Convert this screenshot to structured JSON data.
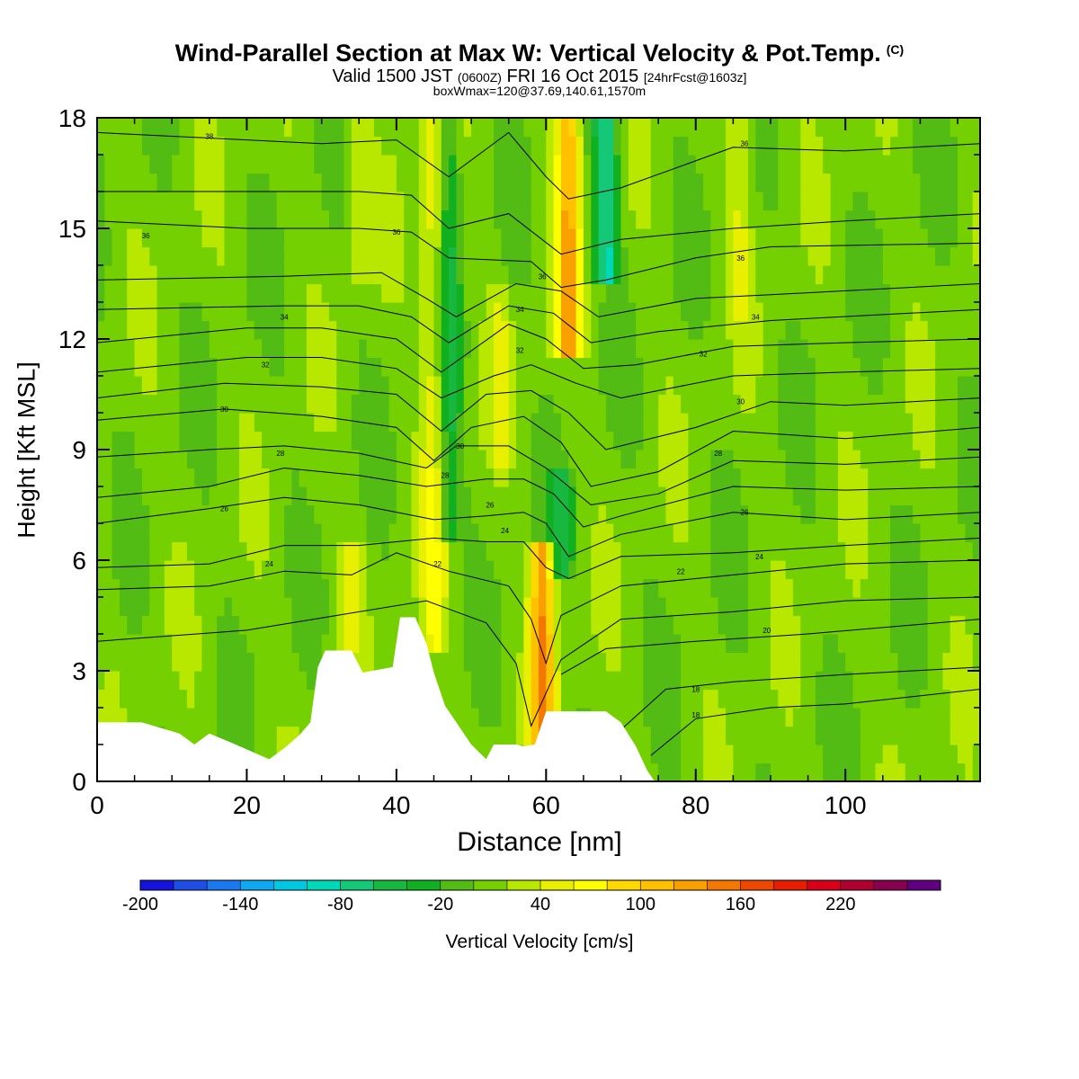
{
  "title": "Wind-Parallel Section at Max W: Vertical Velocity & Pot.Temp.",
  "copyright": "(C)",
  "subtitle_main_a": "Valid 1500 JST",
  "subtitle_small_a": "(0600Z)",
  "subtitle_main_b": "FRI 16 Oct 2015",
  "subtitle_small_b": "[24hrFcst@1603z]",
  "subtitle2": "boxWmax=120@37.69,140.61,1570m",
  "chart_data": {
    "type": "heatmap",
    "xlabel": "Distance [nm]",
    "ylabel": "Height [Kft MSL]",
    "xlim": [
      0,
      118
    ],
    "ylim": [
      0,
      18
    ],
    "xticks": [
      0,
      20,
      40,
      60,
      80,
      100
    ],
    "yticks": [
      0,
      3,
      6,
      9,
      12,
      15,
      18
    ],
    "colorbar": {
      "label": "Vertical Velocity [cm/s]",
      "min": -200,
      "step": 20,
      "ticks": [
        -200,
        -140,
        -80,
        -20,
        40,
        100,
        160,
        220
      ],
      "colors": [
        "#1414dc",
        "#1f4ee6",
        "#1a78f0",
        "#10a8f0",
        "#00c8e0",
        "#00d8b8",
        "#14c878",
        "#18b840",
        "#10b020",
        "#52bc14",
        "#74d000",
        "#b8e800",
        "#e8f000",
        "#ffff00",
        "#ffd800",
        "#ffc000",
        "#f8a000",
        "#f47800",
        "#ee4800",
        "#e81c00",
        "#d80018",
        "#b00030",
        "#880050",
        "#600080"
      ]
    },
    "vertical_velocity_features_cm_s": [
      {
        "x": 45,
        "z_range": [
          4.2,
          18
        ],
        "w": 60
      },
      {
        "x": 47,
        "z_range": [
          7,
          18
        ],
        "w": -40
      },
      {
        "x": 54,
        "z_range": [
          9,
          13
        ],
        "w": 40
      },
      {
        "x": 59.5,
        "z_range": [
          1,
          6
        ],
        "w": 140
      },
      {
        "x": 63,
        "z_range": [
          12,
          18
        ],
        "w": 120
      },
      {
        "x": 68,
        "z_range": [
          14,
          18
        ],
        "w": -80
      },
      {
        "x": 86,
        "z_range": [
          13,
          18
        ],
        "w": 40
      },
      {
        "x": 34,
        "z_range": [
          4,
          6
        ],
        "w": 40
      },
      {
        "x": 35,
        "z_range": [
          14,
          18
        ],
        "w": 40
      },
      {
        "x": 62,
        "z_range": [
          6,
          8
        ],
        "w": -40
      }
    ],
    "terrain_kft": [
      [
        0,
        1.6
      ],
      [
        6,
        1.6
      ],
      [
        11,
        1.3
      ],
      [
        13,
        1.0
      ],
      [
        15,
        1.3
      ],
      [
        18.5,
        1.0
      ],
      [
        23,
        0.6
      ],
      [
        25,
        0.9
      ],
      [
        27,
        1.25
      ],
      [
        28.5,
        1.6
      ],
      [
        29.5,
        3.1
      ],
      [
        30.5,
        3.55
      ],
      [
        34,
        3.55
      ],
      [
        35.5,
        2.95
      ],
      [
        39.5,
        3.1
      ],
      [
        40.5,
        4.45
      ],
      [
        42.5,
        4.45
      ],
      [
        44,
        3.75
      ],
      [
        45,
        2.95
      ],
      [
        46.5,
        2.05
      ],
      [
        48,
        1.6
      ],
      [
        49,
        1.3
      ],
      [
        50,
        1.0
      ],
      [
        52,
        0.6
      ],
      [
        53,
        1.0
      ],
      [
        56,
        1.0
      ],
      [
        57,
        0.95
      ],
      [
        58.5,
        1.0
      ],
      [
        60,
        1.9
      ],
      [
        68,
        1.9
      ],
      [
        70,
        1.6
      ],
      [
        72,
        0.95
      ],
      [
        73.5,
        0.3
      ],
      [
        74.5,
        0
      ],
      [
        118,
        0
      ]
    ],
    "isentropes": [
      {
        "label": "18",
        "pts": [
          [
            74,
            0.7
          ],
          [
            80,
            1.7
          ],
          [
            90,
            2.0
          ],
          [
            100,
            2.1
          ],
          [
            118,
            2.5
          ]
        ]
      },
      {
        "label": "18",
        "pts": [
          [
            70,
            1.4
          ],
          [
            76,
            2.5
          ],
          [
            85,
            2.7
          ],
          [
            100,
            2.9
          ],
          [
            118,
            3.1
          ]
        ]
      },
      {
        "label": "20",
        "pts": [
          [
            62,
            2.9
          ],
          [
            68,
            3.6
          ],
          [
            80,
            3.8
          ],
          [
            95,
            4.0
          ],
          [
            118,
            4.4
          ]
        ]
      },
      {
        "label": "22",
        "pts": [
          [
            0,
            3.8
          ],
          [
            20,
            4.1
          ],
          [
            32,
            4.5
          ],
          [
            44,
            4.9
          ],
          [
            52,
            4.3
          ],
          [
            56,
            3.2
          ],
          [
            58,
            1.5
          ],
          [
            62,
            3.3
          ],
          [
            70,
            4.4
          ],
          [
            85,
            4.6
          ],
          [
            100,
            4.9
          ],
          [
            118,
            5.0
          ]
        ]
      },
      {
        "label": "24",
        "pts": [
          [
            0,
            5.2
          ],
          [
            15,
            5.3
          ],
          [
            25,
            5.7
          ],
          [
            34,
            5.6
          ],
          [
            40,
            6.2
          ],
          [
            47,
            5.7
          ],
          [
            55,
            5.3
          ],
          [
            58,
            4.4
          ],
          [
            60,
            3.2
          ],
          [
            62,
            4.5
          ],
          [
            70,
            5.3
          ],
          [
            85,
            5.6
          ],
          [
            100,
            5.9
          ],
          [
            118,
            6.0
          ]
        ]
      },
      {
        "label": "24",
        "pts": [
          [
            0,
            5.8
          ],
          [
            15,
            5.9
          ],
          [
            25,
            6.4
          ],
          [
            35,
            6.4
          ],
          [
            45,
            6.6
          ],
          [
            52,
            6.5
          ],
          [
            57,
            6.5
          ],
          [
            60,
            5.8
          ],
          [
            63,
            5.5
          ],
          [
            70,
            6.1
          ],
          [
            85,
            6.2
          ],
          [
            100,
            6.4
          ],
          [
            118,
            6.6
          ]
        ]
      },
      {
        "label": "26",
        "pts": [
          [
            0,
            7.0
          ],
          [
            15,
            7.4
          ],
          [
            25,
            7.7
          ],
          [
            35,
            7.5
          ],
          [
            45,
            7.1
          ],
          [
            52,
            7.2
          ],
          [
            57,
            7.3
          ],
          [
            60,
            7.0
          ],
          [
            63,
            6.1
          ],
          [
            70,
            6.7
          ],
          [
            85,
            7.3
          ],
          [
            100,
            7.1
          ],
          [
            118,
            7.3
          ]
        ]
      },
      {
        "label": "26",
        "pts": [
          [
            0,
            7.7
          ],
          [
            15,
            8.0
          ],
          [
            25,
            8.5
          ],
          [
            35,
            8.3
          ],
          [
            44,
            8.0
          ],
          [
            52,
            8.2
          ],
          [
            57,
            8.2
          ],
          [
            61,
            7.8
          ],
          [
            65,
            6.9
          ],
          [
            70,
            7.2
          ],
          [
            85,
            8.0
          ],
          [
            100,
            7.9
          ],
          [
            118,
            8.0
          ]
        ]
      },
      {
        "label": "28",
        "pts": [
          [
            0,
            8.8
          ],
          [
            15,
            9.0
          ],
          [
            25,
            9.1
          ],
          [
            35,
            8.9
          ],
          [
            44,
            8.5
          ],
          [
            48,
            9.1
          ],
          [
            55,
            9.1
          ],
          [
            60,
            8.5
          ],
          [
            66,
            7.5
          ],
          [
            75,
            7.8
          ],
          [
            85,
            8.7
          ],
          [
            100,
            8.6
          ],
          [
            118,
            8.8
          ]
        ]
      },
      {
        "label": "30",
        "pts": [
          [
            0,
            9.8
          ],
          [
            17,
            10.1
          ],
          [
            30,
            9.9
          ],
          [
            40,
            9.6
          ],
          [
            45,
            8.7
          ],
          [
            50,
            9.6
          ],
          [
            57,
            9.9
          ],
          [
            62,
            9.2
          ],
          [
            66,
            8.0
          ],
          [
            75,
            8.4
          ],
          [
            85,
            9.5
          ],
          [
            100,
            9.3
          ],
          [
            118,
            9.6
          ]
        ]
      },
      {
        "label": "30",
        "pts": [
          [
            0,
            10.4
          ],
          [
            17,
            10.8
          ],
          [
            30,
            10.7
          ],
          [
            40,
            10.5
          ],
          [
            46,
            9.5
          ],
          [
            52,
            10.5
          ],
          [
            58,
            10.6
          ],
          [
            63,
            10.0
          ],
          [
            68,
            9.0
          ],
          [
            80,
            9.6
          ],
          [
            90,
            10.3
          ],
          [
            100,
            10.2
          ],
          [
            118,
            10.4
          ]
        ]
      },
      {
        "label": "32",
        "pts": [
          [
            0,
            11.1
          ],
          [
            20,
            11.5
          ],
          [
            30,
            11.5
          ],
          [
            40,
            11.2
          ],
          [
            46,
            10.4
          ],
          [
            53,
            11.0
          ],
          [
            58,
            11.3
          ],
          [
            64,
            10.8
          ],
          [
            70,
            10.4
          ],
          [
            85,
            11.0
          ],
          [
            100,
            11.1
          ],
          [
            118,
            11.2
          ]
        ]
      },
      {
        "label": "32",
        "pts": [
          [
            0,
            11.9
          ],
          [
            20,
            12.3
          ],
          [
            30,
            12.3
          ],
          [
            40,
            12.0
          ],
          [
            46,
            11.1
          ],
          [
            55,
            12.4
          ],
          [
            60,
            12.0
          ],
          [
            65,
            11.2
          ],
          [
            72,
            11.3
          ],
          [
            85,
            11.8
          ],
          [
            100,
            11.9
          ],
          [
            118,
            12.0
          ]
        ]
      },
      {
        "label": "34",
        "pts": [
          [
            0,
            12.8
          ],
          [
            25,
            12.9
          ],
          [
            35,
            12.9
          ],
          [
            42,
            12.6
          ],
          [
            47,
            11.9
          ],
          [
            55,
            12.9
          ],
          [
            61,
            12.7
          ],
          [
            66,
            11.9
          ],
          [
            75,
            12.2
          ],
          [
            90,
            12.5
          ],
          [
            118,
            12.8
          ]
        ]
      },
      {
        "label": "34",
        "pts": [
          [
            0,
            13.6
          ],
          [
            25,
            13.7
          ],
          [
            38,
            13.8
          ],
          [
            44,
            13.1
          ],
          [
            48,
            12.6
          ],
          [
            56,
            13.5
          ],
          [
            62,
            13.3
          ],
          [
            67,
            12.6
          ],
          [
            80,
            13.1
          ],
          [
            90,
            13.2
          ],
          [
            118,
            13.5
          ]
        ]
      },
      {
        "label": "36",
        "pts": [
          [
            0,
            15.2
          ],
          [
            20,
            15.0
          ],
          [
            35,
            15.0
          ],
          [
            42,
            14.9
          ],
          [
            47,
            14.2
          ],
          [
            58,
            14.1
          ],
          [
            62,
            13.4
          ],
          [
            68,
            13.6
          ],
          [
            80,
            14.2
          ],
          [
            90,
            14.5
          ],
          [
            118,
            14.6
          ]
        ]
      },
      {
        "label": "36",
        "pts": [
          [
            0,
            16.0
          ],
          [
            20,
            16.0
          ],
          [
            35,
            16.0
          ],
          [
            42,
            15.9
          ],
          [
            47,
            15.0
          ],
          [
            55,
            15.4
          ],
          [
            62,
            14.3
          ],
          [
            70,
            14.7
          ],
          [
            85,
            15.0
          ],
          [
            100,
            15.2
          ],
          [
            118,
            15.4
          ]
        ]
      },
      {
        "label": "38",
        "pts": [
          [
            0,
            17.6
          ],
          [
            20,
            17.4
          ],
          [
            30,
            17.3
          ],
          [
            40,
            17.4
          ],
          [
            47,
            16.4
          ],
          [
            55,
            17.6
          ],
          [
            60,
            16.4
          ],
          [
            63,
            15.8
          ],
          [
            70,
            16.1
          ],
          [
            85,
            17.2
          ],
          [
            100,
            17.1
          ],
          [
            118,
            17.3
          ]
        ]
      }
    ],
    "contour_labels_visible": [
      {
        "text": "38",
        "x": 15,
        "z": 17.5
      },
      {
        "text": "36",
        "x": 6.5,
        "z": 14.8
      },
      {
        "text": "36",
        "x": 40,
        "z": 14.9
      },
      {
        "text": "36",
        "x": 86,
        "z": 14.2
      },
      {
        "text": "36",
        "x": 86.5,
        "z": 17.3
      },
      {
        "text": "34",
        "x": 25,
        "z": 12.6
      },
      {
        "text": "34",
        "x": 88,
        "z": 12.6
      },
      {
        "text": "32",
        "x": 22.5,
        "z": 11.3
      },
      {
        "text": "32",
        "x": 81,
        "z": 11.6
      },
      {
        "text": "30",
        "x": 17,
        "z": 10.1
      },
      {
        "text": "30",
        "x": 86,
        "z": 10.3
      },
      {
        "text": "28",
        "x": 24.5,
        "z": 8.9
      },
      {
        "text": "28",
        "x": 83,
        "z": 8.9
      },
      {
        "text": "26",
        "x": 17,
        "z": 7.4
      },
      {
        "text": "26",
        "x": 86.5,
        "z": 7.3
      },
      {
        "text": "24",
        "x": 23,
        "z": 5.9
      },
      {
        "text": "24",
        "x": 88.5,
        "z": 6.1
      },
      {
        "text": "22",
        "x": 45.5,
        "z": 5.9
      },
      {
        "text": "22",
        "x": 78,
        "z": 5.7
      },
      {
        "text": "20",
        "x": 89.5,
        "z": 4.1
      },
      {
        "text": "18",
        "x": 80,
        "z": 2.5
      },
      {
        "text": "18",
        "x": 80,
        "z": 1.8
      },
      {
        "text": "30",
        "x": 48.5,
        "z": 9.1
      },
      {
        "text": "28",
        "x": 46.5,
        "z": 8.3
      },
      {
        "text": "26",
        "x": 52.5,
        "z": 7.5
      },
      {
        "text": "24",
        "x": 54.5,
        "z": 6.8
      },
      {
        "text": "36",
        "x": 59.5,
        "z": 13.7
      },
      {
        "text": "34",
        "x": 56.5,
        "z": 12.8
      },
      {
        "text": "32",
        "x": 56.5,
        "z": 11.7
      }
    ]
  }
}
